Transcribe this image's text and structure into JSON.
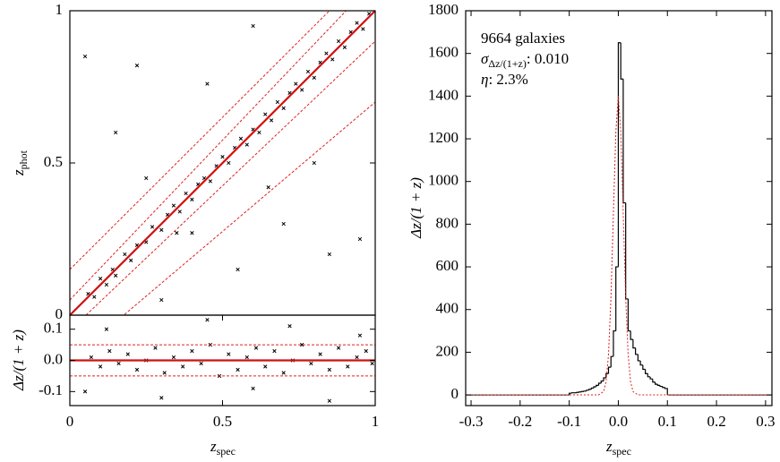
{
  "chart_data": [
    {
      "type": "scatter",
      "ylabel": {
        "main": "z",
        "sub": "phot"
      },
      "xlim": [
        0,
        1
      ],
      "ylim": [
        0,
        1
      ],
      "yticks": [
        0,
        0.5,
        1
      ],
      "color": "#000000",
      "x": [
        0.06,
        0.08,
        0.1,
        0.12,
        0.14,
        0.15,
        0.18,
        0.2,
        0.22,
        0.25,
        0.27,
        0.3,
        0.32,
        0.34,
        0.36,
        0.38,
        0.4,
        0.42,
        0.44,
        0.46,
        0.48,
        0.5,
        0.52,
        0.54,
        0.56,
        0.58,
        0.6,
        0.62,
        0.64,
        0.66,
        0.68,
        0.7,
        0.72,
        0.74,
        0.76,
        0.78,
        0.8,
        0.82,
        0.84,
        0.86,
        0.88,
        0.9,
        0.92,
        0.94,
        0.96,
        0.98,
        0.05,
        0.22,
        0.35,
        0.4,
        0.6,
        0.7,
        0.85,
        0.95,
        0.3,
        0.55,
        0.15,
        0.45,
        0.8,
        0.65,
        0.25
      ],
      "y": [
        0.07,
        0.06,
        0.12,
        0.1,
        0.15,
        0.13,
        0.2,
        0.18,
        0.23,
        0.24,
        0.29,
        0.28,
        0.33,
        0.36,
        0.34,
        0.4,
        0.38,
        0.43,
        0.45,
        0.44,
        0.49,
        0.52,
        0.5,
        0.55,
        0.58,
        0.56,
        0.61,
        0.6,
        0.66,
        0.64,
        0.7,
        0.68,
        0.73,
        0.76,
        0.74,
        0.8,
        0.78,
        0.83,
        0.86,
        0.84,
        0.9,
        0.88,
        0.93,
        0.96,
        0.94,
        0.99,
        0.85,
        0.82,
        0.27,
        0.27,
        0.95,
        0.3,
        0.2,
        0.25,
        0.05,
        0.15,
        0.6,
        0.76,
        0.5,
        0.42,
        0.45
      ],
      "lines": [
        {
          "x": [
            0,
            1
          ],
          "y": [
            0,
            1
          ],
          "color": "#d01010",
          "style": "solid"
        },
        {
          "x": [
            0,
            1
          ],
          "y": [
            0.15,
            1.15
          ],
          "color": "#e02020",
          "style": "dashed"
        },
        {
          "x": [
            0,
            1
          ],
          "y": [
            0.05,
            1.1
          ],
          "color": "#e02020",
          "style": "dashed"
        },
        {
          "x": [
            0,
            1
          ],
          "y": [
            -0.05,
            0.9
          ],
          "color": "#e02020",
          "style": "dashed"
        },
        {
          "x": [
            0,
            1
          ],
          "y": [
            -0.15,
            0.7
          ],
          "color": "#e02020",
          "style": "dashed"
        }
      ]
    },
    {
      "type": "scatter",
      "xlabel": {
        "main": "z",
        "sub": "spec"
      },
      "ylabel": "Δz/(1 + z)",
      "xlim": [
        0,
        1
      ],
      "ylim": [
        -0.145,
        0.145
      ],
      "xticks": [
        0,
        0.5,
        1
      ],
      "yticks": [
        -0.1,
        {
          "value": 0,
          "label": "0.0"
        },
        0.1
      ],
      "color": "#000000",
      "x": [
        0.07,
        0.1,
        0.13,
        0.16,
        0.19,
        0.22,
        0.25,
        0.28,
        0.31,
        0.34,
        0.37,
        0.4,
        0.43,
        0.46,
        0.49,
        0.52,
        0.55,
        0.58,
        0.61,
        0.64,
        0.67,
        0.7,
        0.73,
        0.76,
        0.79,
        0.82,
        0.85,
        0.88,
        0.91,
        0.94,
        0.97,
        0.99,
        0.12,
        0.3,
        0.45,
        0.6,
        0.72,
        0.85,
        0.95,
        0.05
      ],
      "y": [
        0.01,
        -0.02,
        0.03,
        -0.01,
        0.02,
        -0.03,
        0.0,
        0.04,
        -0.04,
        0.01,
        -0.02,
        0.03,
        -0.01,
        0.05,
        -0.05,
        0.02,
        -0.03,
        0.01,
        0.04,
        -0.02,
        0.03,
        -0.04,
        0.0,
        0.05,
        -0.01,
        0.02,
        -0.03,
        0.04,
        -0.02,
        0.01,
        0.03,
        -0.01,
        0.1,
        -0.12,
        0.13,
        -0.09,
        0.11,
        -0.13,
        0.08,
        -0.1
      ],
      "lines": [
        {
          "x": [
            0,
            1
          ],
          "y": [
            0,
            0
          ],
          "color": "#d01010",
          "style": "solid"
        },
        {
          "x": [
            0,
            1
          ],
          "y": [
            0.05,
            0.05
          ],
          "color": "#e02020",
          "style": "dashed"
        },
        {
          "x": [
            0,
            1
          ],
          "y": [
            -0.05,
            -0.05
          ],
          "color": "#e02020",
          "style": "dashed"
        }
      ]
    },
    {
      "type": "histogram",
      "annotations": [
        {
          "main": "9664 galaxies"
        },
        {
          "main": "σ",
          "sub": "Δz/(1+z)",
          "rest": ": 0.010"
        },
        {
          "main": "η",
          "rest": ": 2.3%"
        }
      ],
      "xlabel": {
        "main": "z",
        "sub": "spec"
      },
      "ylabel": "Δz/(1 + z)",
      "xlim": [
        -0.311,
        0.313
      ],
      "ylim": [
        -50,
        1800
      ],
      "xticks": [
        -0.3,
        -0.2,
        -0.1,
        {
          "value": 0,
          "label": "0.0"
        },
        0.1,
        0.2,
        0.3
      ],
      "yticks": [
        0,
        200,
        400,
        600,
        800,
        1000,
        1200,
        1400,
        1600,
        1800
      ],
      "color": "#000000",
      "bins": [
        -0.1,
        -0.095,
        -0.09,
        -0.085,
        -0.08,
        -0.075,
        -0.07,
        -0.065,
        -0.06,
        -0.055,
        -0.05,
        -0.045,
        -0.04,
        -0.035,
        -0.03,
        -0.025,
        -0.02,
        -0.015,
        -0.01,
        -0.005,
        0,
        0.005,
        0.01,
        0.015,
        0.02,
        0.025,
        0.03,
        0.035,
        0.04,
        0.045,
        0.05,
        0.055,
        0.06,
        0.065,
        0.07,
        0.075,
        0.08,
        0.085,
        0.09,
        0.095,
        0.1
      ],
      "values": [
        8,
        10,
        10,
        12,
        14,
        16,
        18,
        22,
        26,
        32,
        38,
        45,
        55,
        65,
        80,
        100,
        130,
        180,
        300,
        600,
        1650,
        1480,
        900,
        450,
        300,
        260,
        220,
        190,
        160,
        140,
        120,
        100,
        85,
        75,
        60,
        50,
        45,
        40,
        35,
        30
      ],
      "fit": {
        "color": "#e02020",
        "x": [
          -0.311,
          -0.04,
          -0.03,
          -0.025,
          -0.02,
          -0.015,
          -0.01,
          -0.005,
          0,
          0.005,
          0.01,
          0.015,
          0.02,
          0.025,
          0.03,
          0.04,
          0.313
        ],
        "y": [
          0,
          0.5,
          15.6,
          61,
          189,
          455,
          849,
          1235,
          1400,
          1235,
          849,
          455,
          189,
          61,
          15.6,
          0.5,
          0
        ]
      }
    }
  ]
}
